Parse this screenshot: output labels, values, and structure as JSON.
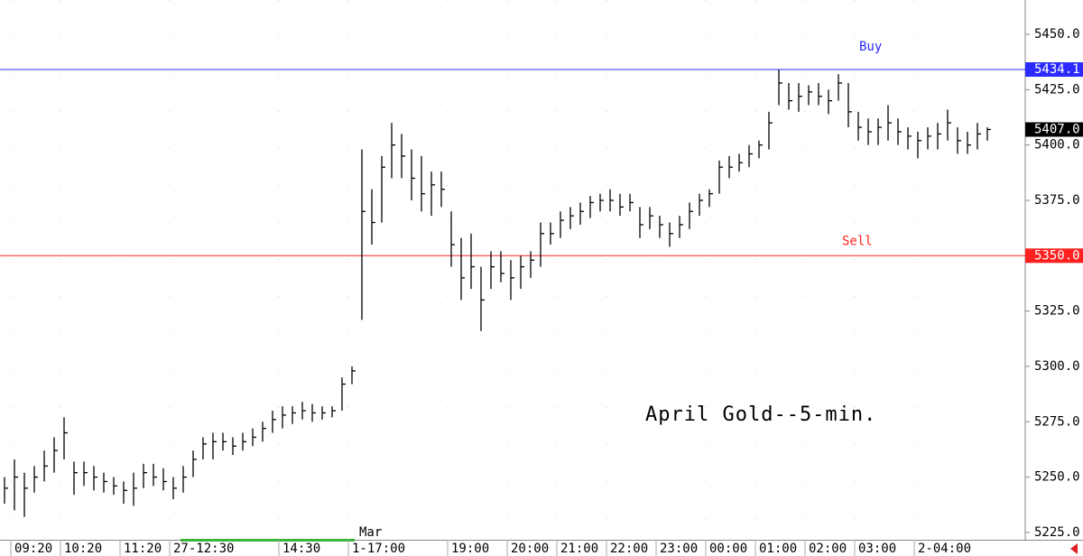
{
  "chart_data": {
    "type": "ohlc",
    "annotation": "April Gold--5-min.",
    "session_label": "Mar",
    "categories": [
      null,
      "09:20",
      null,
      null,
      null,
      null,
      "10:20",
      null,
      null,
      null,
      null,
      null,
      "11:20",
      null,
      null,
      null,
      null,
      "27-12:30",
      null,
      null,
      null,
      null,
      null,
      null,
      null,
      null,
      null,
      null,
      "14:30",
      null,
      null,
      null,
      null,
      null,
      null,
      "1-17:00",
      null,
      null,
      null,
      null,
      null,
      null,
      null,
      null,
      null,
      "19:00",
      null,
      null,
      null,
      null,
      null,
      "20:00",
      null,
      null,
      null,
      null,
      "21:00",
      null,
      null,
      null,
      null,
      "22:00",
      null,
      null,
      null,
      null,
      "23:00",
      null,
      null,
      null,
      null,
      "00:00",
      null,
      null,
      null,
      null,
      "01:00",
      null,
      null,
      null,
      null,
      "02:00",
      null,
      null,
      null,
      null,
      "03:00",
      null,
      null,
      null,
      null,
      null,
      "2-04:00",
      null,
      null,
      null,
      null,
      null,
      null,
      null
    ],
    "series": [
      {
        "name": "high",
        "color": "#000000",
        "values": [
          5250,
          5258,
          5252,
          5255,
          5262,
          5268,
          5277,
          5257,
          5257,
          5255,
          5252,
          5250,
          5248,
          5252,
          5256,
          5256,
          5254,
          5250,
          5255,
          5262,
          5268,
          5270,
          5270,
          5268,
          5270,
          5272,
          5275,
          5280,
          5282,
          5282,
          5284,
          5283,
          5282,
          5282,
          5295,
          5300,
          5398,
          5380,
          5395,
          5410,
          5405,
          5398,
          5395,
          5388,
          5388,
          5370,
          5358,
          5360,
          5345,
          5352,
          5352,
          5348,
          5350,
          5352,
          5365,
          5365,
          5370,
          5372,
          5374,
          5377,
          5378,
          5380,
          5378,
          5378,
          5372,
          5372,
          5368,
          5365,
          5368,
          5374,
          5378,
          5380,
          5393,
          5395,
          5396,
          5400,
          5402,
          5415,
          5434,
          5428,
          5428,
          5427,
          5428,
          5425,
          5432,
          5428,
          5415,
          5412,
          5412,
          5418,
          5412,
          5408,
          5406,
          5408,
          5410,
          5416,
          5408,
          5406,
          5410,
          5408
        ]
      },
      {
        "name": "low",
        "color": "#000000",
        "values": [
          5238,
          5235,
          5232,
          5243,
          5248,
          5252,
          5258,
          5242,
          5246,
          5244,
          5243,
          5242,
          5238,
          5237,
          5245,
          5246,
          5244,
          5240,
          5243,
          5250,
          5258,
          5258,
          5262,
          5260,
          5262,
          5264,
          5266,
          5270,
          5272,
          5274,
          5276,
          5275,
          5276,
          5277,
          5280,
          5292,
          5321,
          5355,
          5365,
          5385,
          5385,
          5375,
          5370,
          5368,
          5372,
          5345,
          5330,
          5335,
          5316,
          5335,
          5338,
          5330,
          5335,
          5340,
          5345,
          5355,
          5358,
          5362,
          5364,
          5367,
          5370,
          5370,
          5368,
          5370,
          5358,
          5362,
          5358,
          5354,
          5358,
          5362,
          5368,
          5372,
          5378,
          5385,
          5388,
          5390,
          5394,
          5398,
          5418,
          5416,
          5415,
          5418,
          5418,
          5414,
          5420,
          5408,
          5402,
          5400,
          5400,
          5402,
          5400,
          5398,
          5394,
          5398,
          5398,
          5402,
          5396,
          5396,
          5398,
          5402
        ]
      },
      {
        "name": "close",
        "color": "#000000",
        "values": [
          5245,
          5250,
          5245,
          5250,
          5255,
          5262,
          5270,
          5252,
          5252,
          5250,
          5248,
          5246,
          5244,
          5245,
          5252,
          5250,
          5248,
          5245,
          5250,
          5258,
          5265,
          5266,
          5266,
          5264,
          5266,
          5268,
          5272,
          5276,
          5278,
          5279,
          5280,
          5279,
          5279,
          5280,
          5292,
          5298,
          5370,
          5365,
          5390,
          5400,
          5395,
          5385,
          5378,
          5382,
          5380,
          5355,
          5340,
          5345,
          5330,
          5345,
          5342,
          5340,
          5345,
          5348,
          5360,
          5360,
          5366,
          5368,
          5370,
          5374,
          5375,
          5375,
          5372,
          5374,
          5364,
          5368,
          5364,
          5360,
          5364,
          5370,
          5375,
          5378,
          5390,
          5390,
          5392,
          5396,
          5400,
          5410,
          5428,
          5420,
          5422,
          5424,
          5422,
          5420,
          5428,
          5415,
          5408,
          5406,
          5408,
          5410,
          5406,
          5404,
          5402,
          5404,
          5405,
          5410,
          5402,
          5400,
          5405,
          5407
        ]
      }
    ],
    "levels": [
      {
        "name": "Buy",
        "value": 5434.1,
        "color": "#2b2bff"
      },
      {
        "name": "Sell",
        "value": 5350,
        "value_label": "5350.0",
        "color": "#ff2020"
      }
    ],
    "last": {
      "value": 5407,
      "value_label": "5407.0",
      "color": "#000000"
    },
    "ylim": [
      5221.7,
      5465.5
    ],
    "yticks": [
      {
        "value": 5225,
        "label": "5225.0"
      },
      {
        "value": 5250,
        "label": "5250.0"
      },
      {
        "value": 5275,
        "label": "5275.0"
      },
      {
        "value": 5300,
        "label": "5300.0"
      },
      {
        "value": 5325,
        "label": "5325.0"
      },
      {
        "value": 5350,
        "label": "5350.0"
      },
      {
        "value": 5375,
        "label": "5375.0"
      },
      {
        "value": 5400,
        "label": "5400.0"
      },
      {
        "value": 5425,
        "label": "5425.0"
      },
      {
        "value": 5450,
        "label": "5450.0"
      }
    ],
    "axis_side": "right"
  }
}
